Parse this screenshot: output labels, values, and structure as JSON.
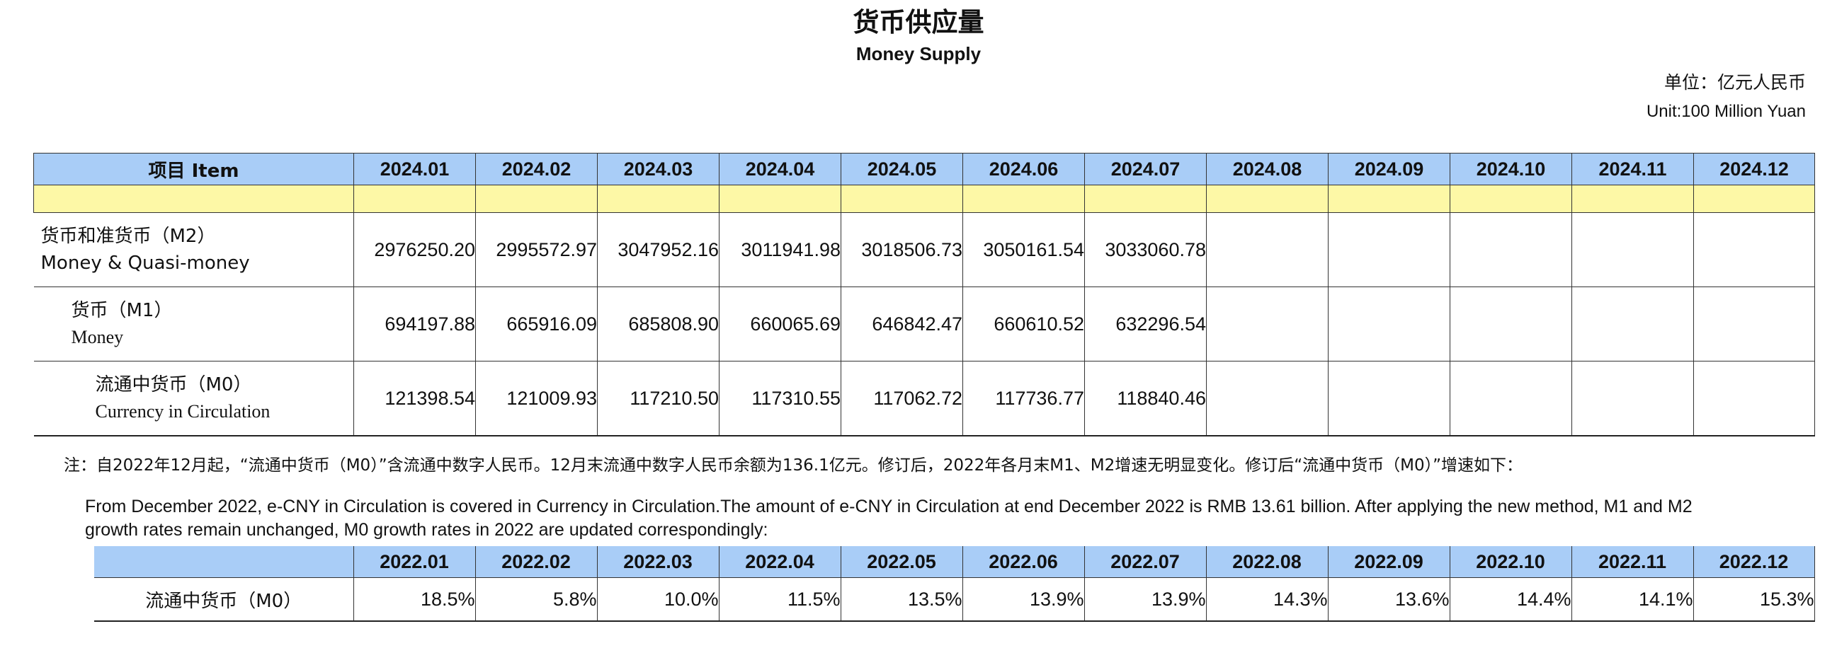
{
  "title_cn": "货币供应量",
  "title_en": "Money Supply",
  "unit_cn": "单位：亿元人民币",
  "unit_en": "Unit:100 Million Yuan",
  "main_table": {
    "item_header": "项目 Item",
    "months": [
      "2024.01",
      "2024.02",
      "2024.03",
      "2024.04",
      "2024.05",
      "2024.06",
      "2024.07",
      "2024.08",
      "2024.09",
      "2024.10",
      "2024.11",
      "2024.12"
    ],
    "rows": [
      {
        "label_cn": "货币和准货币（M2）",
        "label_en": "Money & Quasi-money",
        "values": [
          "2976250.20",
          "2995572.97",
          "3047952.16",
          "3011941.98",
          "3018506.73",
          "3050161.54",
          "3033060.78",
          "",
          "",
          "",
          "",
          ""
        ]
      },
      {
        "label_cn": "货币（M1）",
        "label_en": "Money",
        "values": [
          "694197.88",
          "665916.09",
          "685808.90",
          "660065.69",
          "646842.47",
          "660610.52",
          "632296.54",
          "",
          "",
          "",
          "",
          ""
        ]
      },
      {
        "label_cn": "流通中货币（M0）",
        "label_en": "Currency in Circulation",
        "values": [
          "121398.54",
          "121009.93",
          "117210.50",
          "117310.55",
          "117062.72",
          "117736.77",
          "118840.46",
          "",
          "",
          "",
          "",
          ""
        ]
      }
    ]
  },
  "note_cn": "注：自2022年12月起，“流通中货币（M0）”含流通中数字人民币。12月末流通中数字人民币余额为136.1亿元。修订后，2022年各月末M1、M2增速无明显变化。修订后“流通中货币（M0）”增速如下：",
  "note_en": "From December 2022, e-CNY in Circulation is covered in Currency in Circulation.The amount of e-CNY in Circulation at end December 2022 is RMB 13.61 billion. After applying the new method, M1 and M2 growth rates remain unchanged, M0 growth rates in 2022 are updated correspondingly:",
  "growth_table": {
    "months": [
      "2022.01",
      "2022.02",
      "2022.03",
      "2022.04",
      "2022.05",
      "2022.06",
      "2022.07",
      "2022.08",
      "2022.09",
      "2022.10",
      "2022.11",
      "2022.12"
    ],
    "row_label": "流通中货币（M0）",
    "values": [
      "18.5%",
      "5.8%",
      "10.0%",
      "11.5%",
      "13.5%",
      "13.9%",
      "13.9%",
      "14.3%",
      "13.6%",
      "14.4%",
      "14.1%",
      "15.3%"
    ]
  }
}
